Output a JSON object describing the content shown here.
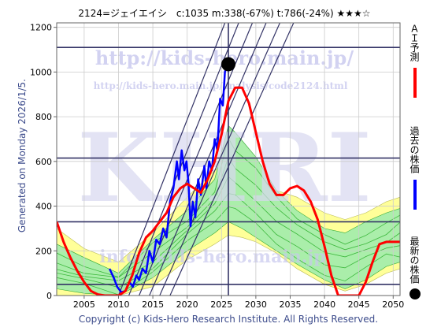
{
  "header": {
    "title": "2124=ジェイエイシ　c:1035  m:338(-67%)  t:786(-24%)  ★★★☆"
  },
  "side_labels": {
    "generated": "Generated on Monday 2026/1/5.",
    "ai_forecast": "ＡＩ予測",
    "past_price": "過去の株価",
    "latest_price": "最新の株価"
  },
  "watermarks": {
    "url_main": "http://kids-hero.main.jp/",
    "url_sub": "http://kids-hero.main.jp/analysis/code2124.html",
    "big": "KHRI",
    "info": "info@kids-hero.main.jp"
  },
  "footer": {
    "copyright": "Copyright (c) Kids-Hero Research Institute. All Rights Reserved."
  },
  "colors": {
    "ai_forecast": "#ff0000",
    "past_price": "#0000ff",
    "latest_price": "#000000",
    "band_fill": "#66dd66",
    "band_outer": "#ffff99",
    "trend_lines": "#333366"
  },
  "chart_data": {
    "type": "line",
    "xlim": [
      2001,
      2051
    ],
    "ylim": [
      0,
      1220
    ],
    "x_ticks": [
      2005,
      2010,
      2015,
      2020,
      2025,
      2030,
      2035,
      2040,
      2045,
      2050
    ],
    "y_ticks": [
      0,
      200,
      400,
      600,
      800,
      1000,
      1200
    ],
    "current": {
      "year": 2026.0,
      "value": 1035
    },
    "current_year_line": 2026.0,
    "horizontal_lines": [
      50,
      330,
      615,
      1110
    ],
    "series": [
      {
        "name": "過去の株価",
        "color": "#0000ff",
        "points": [
          [
            2008.7,
            120
          ],
          [
            2009.3,
            80
          ],
          [
            2009.8,
            40
          ],
          [
            2010.4,
            15
          ],
          [
            2011.0,
            20
          ],
          [
            2011.6,
            60
          ],
          [
            2012.1,
            40
          ],
          [
            2012.6,
            90
          ],
          [
            2013.0,
            70
          ],
          [
            2013.5,
            120
          ],
          [
            2014.0,
            100
          ],
          [
            2014.5,
            200
          ],
          [
            2015.0,
            150
          ],
          [
            2015.5,
            250
          ],
          [
            2016.0,
            230
          ],
          [
            2016.5,
            300
          ],
          [
            2017.0,
            260
          ],
          [
            2017.5,
            420
          ],
          [
            2018.0,
            480
          ],
          [
            2018.5,
            600
          ],
          [
            2018.8,
            520
          ],
          [
            2019.2,
            650
          ],
          [
            2019.6,
            560
          ],
          [
            2019.9,
            600
          ],
          [
            2020.2,
            500
          ],
          [
            2020.5,
            310
          ],
          [
            2020.8,
            420
          ],
          [
            2021.2,
            350
          ],
          [
            2021.6,
            520
          ],
          [
            2022.0,
            450
          ],
          [
            2022.5,
            580
          ],
          [
            2022.8,
            480
          ],
          [
            2023.2,
            600
          ],
          [
            2023.6,
            560
          ],
          [
            2024.0,
            700
          ],
          [
            2024.4,
            650
          ],
          [
            2024.8,
            880
          ],
          [
            2025.2,
            850
          ],
          [
            2025.5,
            1000
          ],
          [
            2025.8,
            1035
          ],
          [
            2026.0,
            1035
          ]
        ]
      },
      {
        "name": "ＡＩ予測",
        "color": "#ff0000",
        "points": [
          [
            2001,
            330
          ],
          [
            2002,
            240
          ],
          [
            2003,
            170
          ],
          [
            2004,
            110
          ],
          [
            2005,
            60
          ],
          [
            2006,
            20
          ],
          [
            2007,
            5
          ],
          [
            2008,
            0
          ],
          [
            2010,
            0
          ],
          [
            2011,
            20
          ],
          [
            2012,
            90
          ],
          [
            2013,
            190
          ],
          [
            2014,
            260
          ],
          [
            2015,
            290
          ],
          [
            2016,
            330
          ],
          [
            2017,
            370
          ],
          [
            2018,
            440
          ],
          [
            2019,
            480
          ],
          [
            2020,
            500
          ],
          [
            2021,
            480
          ],
          [
            2022,
            460
          ],
          [
            2023,
            520
          ],
          [
            2024,
            600
          ],
          [
            2025,
            720
          ],
          [
            2026,
            870
          ],
          [
            2027,
            930
          ],
          [
            2028,
            930
          ],
          [
            2029,
            860
          ],
          [
            2030,
            730
          ],
          [
            2031,
            600
          ],
          [
            2032,
            500
          ],
          [
            2033,
            450
          ],
          [
            2034,
            450
          ],
          [
            2035,
            480
          ],
          [
            2036,
            490
          ],
          [
            2037,
            470
          ],
          [
            2038,
            420
          ],
          [
            2039,
            340
          ],
          [
            2040,
            220
          ],
          [
            2041,
            90
          ],
          [
            2042,
            0
          ],
          [
            2043,
            0
          ],
          [
            2045,
            0
          ],
          [
            2046,
            60
          ],
          [
            2047,
            150
          ],
          [
            2048,
            230
          ],
          [
            2049,
            240
          ],
          [
            2050,
            240
          ],
          [
            2051,
            240
          ]
        ]
      }
    ],
    "bands": {
      "outer_upper": [
        [
          2001,
          300
        ],
        [
          2005,
          210
        ],
        [
          2010,
          150
        ],
        [
          2015,
          280
        ],
        [
          2020,
          440
        ],
        [
          2024,
          560
        ],
        [
          2026,
          600
        ],
        [
          2028,
          640
        ],
        [
          2030,
          580
        ],
        [
          2033,
          470
        ],
        [
          2036,
          440
        ],
        [
          2040,
          370
        ],
        [
          2043,
          340
        ],
        [
          2046,
          370
        ],
        [
          2049,
          420
        ],
        [
          2051,
          440
        ]
      ],
      "outer_lower": [
        [
          2001,
          0
        ],
        [
          2005,
          0
        ],
        [
          2010,
          0
        ],
        [
          2015,
          40
        ],
        [
          2020,
          160
        ],
        [
          2024,
          230
        ],
        [
          2026,
          270
        ],
        [
          2028,
          260
        ],
        [
          2030,
          240
        ],
        [
          2033,
          190
        ],
        [
          2036,
          120
        ],
        [
          2040,
          50
        ],
        [
          2043,
          20
        ],
        [
          2046,
          50
        ],
        [
          2049,
          100
        ],
        [
          2051,
          120
        ]
      ],
      "inner_upper": [
        [
          2001,
          230
        ],
        [
          2005,
          170
        ],
        [
          2010,
          100
        ],
        [
          2015,
          250
        ],
        [
          2020,
          380
        ],
        [
          2024,
          520
        ],
        [
          2026,
          760
        ],
        [
          2027,
          730
        ],
        [
          2030,
          620
        ],
        [
          2033,
          470
        ],
        [
          2036,
          380
        ],
        [
          2040,
          300
        ],
        [
          2043,
          280
        ],
        [
          2046,
          330
        ],
        [
          2049,
          370
        ],
        [
          2051,
          390
        ]
      ],
      "inner_lower": [
        [
          2001,
          30
        ],
        [
          2005,
          10
        ],
        [
          2010,
          0
        ],
        [
          2015,
          80
        ],
        [
          2020,
          200
        ],
        [
          2024,
          280
        ],
        [
          2026,
          330
        ],
        [
          2028,
          300
        ],
        [
          2030,
          260
        ],
        [
          2033,
          200
        ],
        [
          2036,
          140
        ],
        [
          2040,
          70
        ],
        [
          2043,
          30
        ],
        [
          2046,
          70
        ],
        [
          2049,
          130
        ],
        [
          2051,
          150
        ]
      ]
    },
    "trend_lines": [
      {
        "from": [
          2010.0,
          0
        ],
        "to": [
          2025.5,
          1220
        ]
      },
      {
        "from": [
          2011.5,
          0
        ],
        "to": [
          2027.5,
          1220
        ]
      },
      {
        "from": [
          2013.0,
          0
        ],
        "to": [
          2029.5,
          1220
        ]
      },
      {
        "from": [
          2014.5,
          0
        ],
        "to": [
          2031.5,
          1220
        ]
      },
      {
        "from": [
          2016.0,
          0
        ],
        "to": [
          2033.5,
          1220
        ]
      },
      {
        "from": [
          2017.5,
          0
        ],
        "to": [
          2035.5,
          1220
        ]
      }
    ]
  }
}
